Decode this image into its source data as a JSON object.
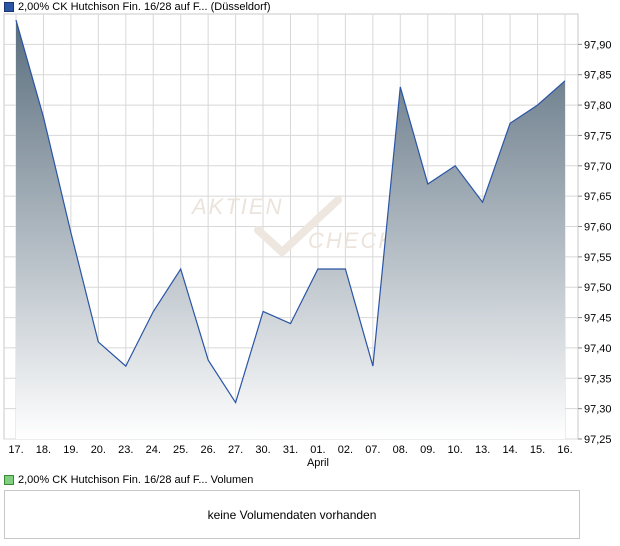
{
  "legend": {
    "price_label": "2,00% CK Hutchison Fin. 16/28 auf F... (Düsseldorf)",
    "volume_label": "2,00% CK Hutchison Fin. 16/28 auf F... Volumen"
  },
  "volume_panel": {
    "message": "keine Volumendaten vorhanden"
  },
  "watermark": {
    "line1": "AKTIEN",
    "line2": "CHECK"
  },
  "colors": {
    "line": "#2a55a5",
    "fill_top": "#5a6e7e",
    "fill_bottom": "#ffffff",
    "grid": "#d8d8d8"
  },
  "chart_data": {
    "type": "area",
    "categories": [
      "17.",
      "18.",
      "19.",
      "20.",
      "23.",
      "24.",
      "25.",
      "26.",
      "27.",
      "30.",
      "31.",
      "01.",
      "02.",
      "07.",
      "08.",
      "09.",
      "10.",
      "13.",
      "14.",
      "15.",
      "16."
    ],
    "month_label": {
      "after_category": "01.",
      "text": "April"
    },
    "series": [
      {
        "values": [
          97.94,
          97.78,
          97.59,
          97.41,
          97.37,
          97.46,
          97.53,
          97.38,
          97.31,
          97.46,
          97.44,
          97.53,
          97.53,
          97.37,
          97.83,
          97.67,
          97.7,
          97.64,
          97.77,
          97.8,
          97.84
        ]
      }
    ],
    "y_ticks": [
      "97,25",
      "97,30",
      "97,35",
      "97,40",
      "97,45",
      "97,50",
      "97,55",
      "97,60",
      "97,65",
      "97,70",
      "97,75",
      "97,80",
      "97,85",
      "97,90"
    ],
    "ylim": [
      97.25,
      97.95
    ],
    "y_axis_side": "right",
    "grid": true
  }
}
